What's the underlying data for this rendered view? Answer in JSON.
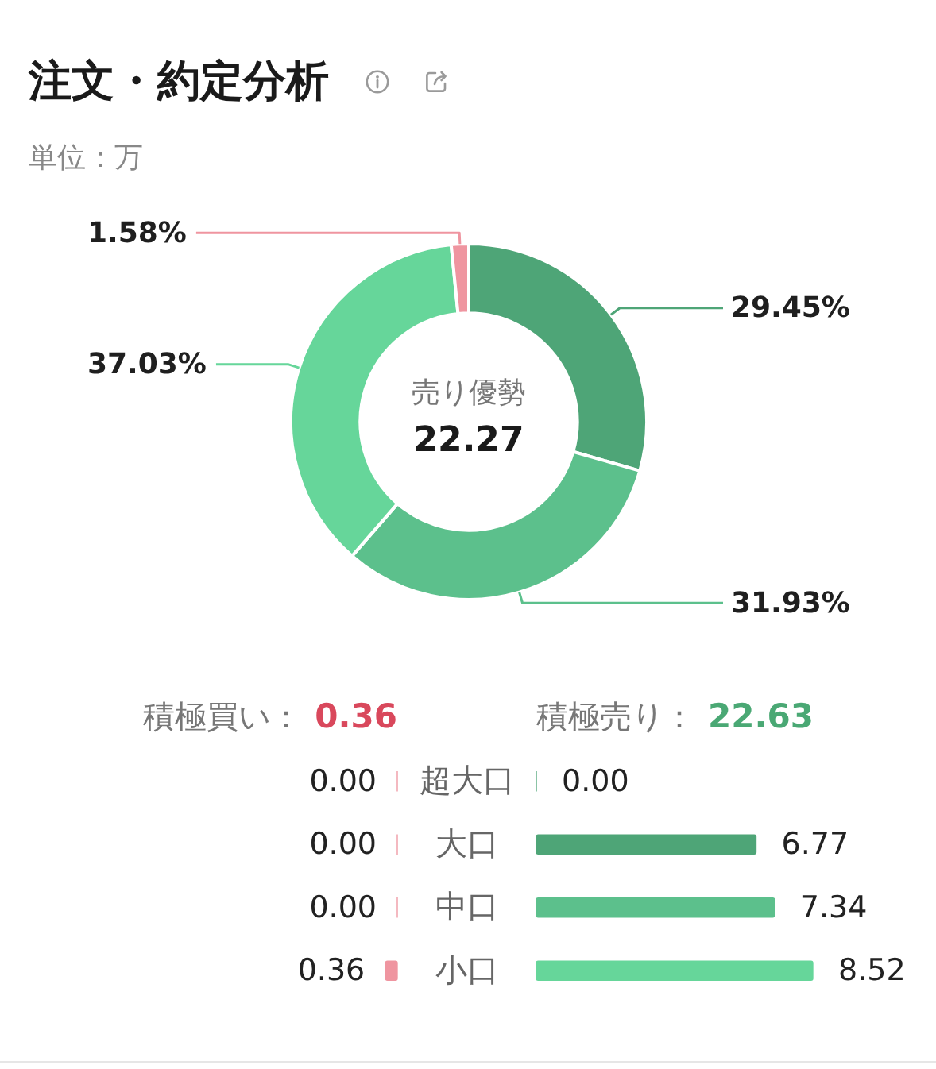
{
  "chart_data": [
    {
      "type": "donut",
      "title": "注文・約定分析",
      "subtitle": "単位：万",
      "categories": [
        null,
        null,
        null,
        null
      ],
      "values": [
        29.45,
        31.93,
        37.03,
        1.58
      ],
      "colors": [
        "#4ea577",
        "#5cc08c",
        "#66d69a",
        "#ef95a0"
      ],
      "value_labels": [
        "29.45%",
        "31.93%",
        "37.03%",
        "1.58%"
      ],
      "annotations": [
        "売り優勢",
        "22.27"
      ]
    },
    {
      "type": "bar",
      "orientation": "horizontal",
      "title": "積極買い：",
      "annotations": [
        "0.36"
      ],
      "categories": [
        "超大口",
        "大口",
        "中口",
        "小口"
      ],
      "tick_labels": "y",
      "values": [
        0,
        0,
        0,
        0.36
      ],
      "color": "#ef95a0",
      "value_labels": [
        "0.00",
        "0.00",
        "0.00",
        "0.36"
      ]
    },
    {
      "type": "bar",
      "orientation": "horizontal",
      "title": "積極売り：",
      "annotations": [
        "22.63"
      ],
      "categories": [
        null,
        null,
        null,
        null
      ],
      "tick_labels": false,
      "values": [
        0,
        6.77,
        7.34,
        8.52
      ],
      "colors": [
        "#4ea577",
        "#4ea577",
        "#5cc08c",
        "#66d69a"
      ],
      "value_labels": [
        "0.00",
        "6.77",
        "7.34",
        "8.52"
      ]
    }
  ]
}
